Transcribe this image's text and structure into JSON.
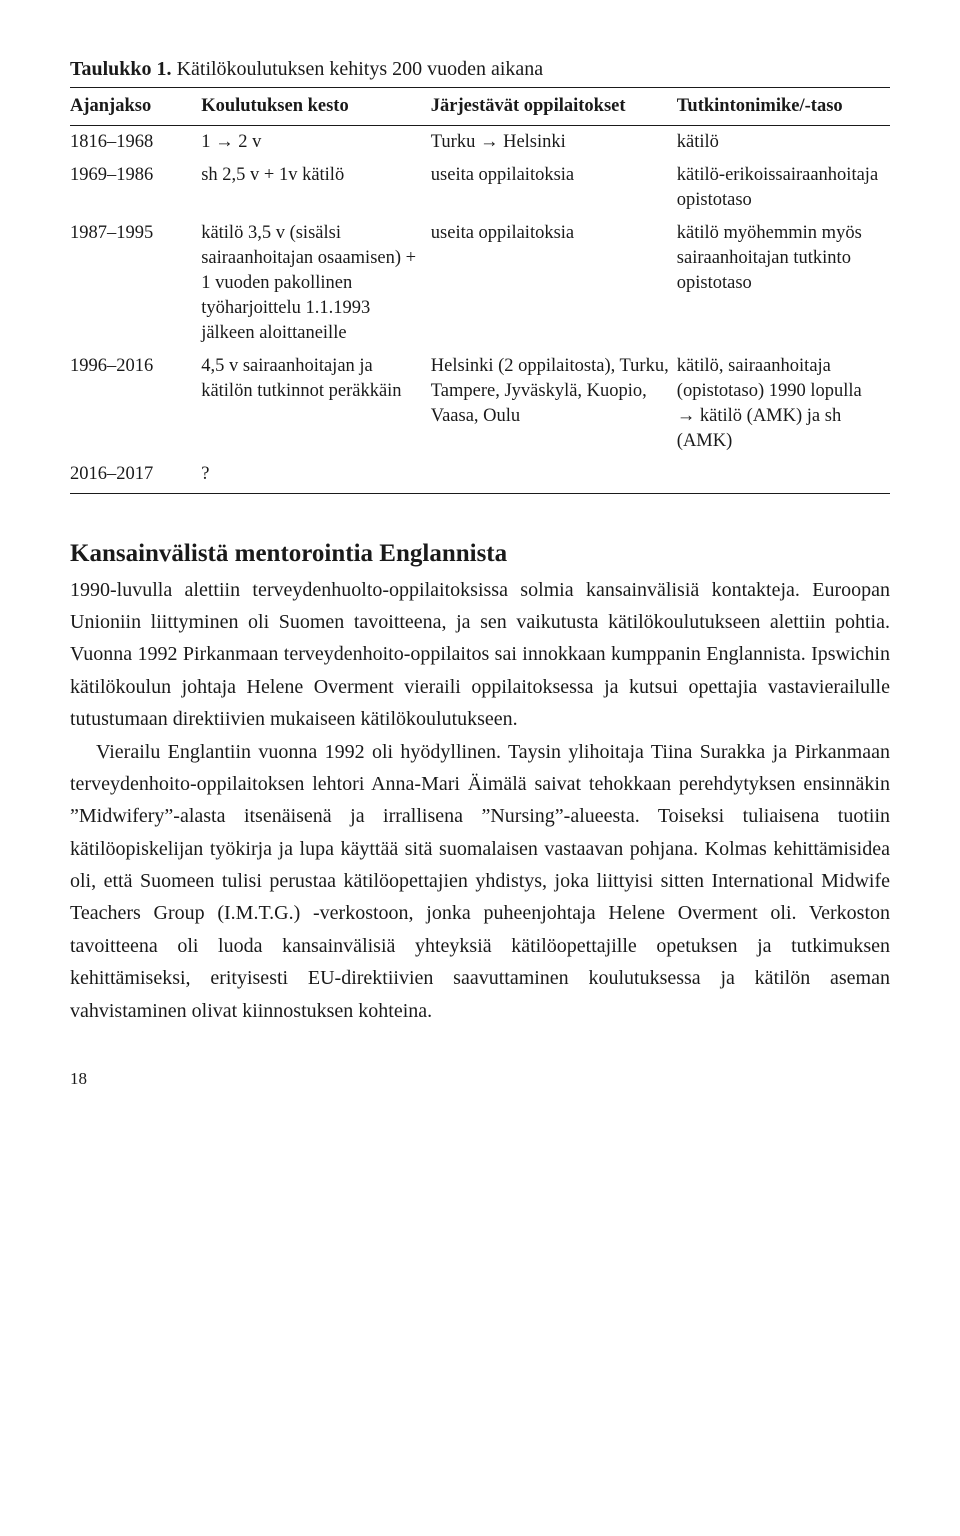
{
  "table": {
    "label": "Taulukko 1.",
    "caption": "Kätilökoulutuksen kehitys 200 vuoden aikana",
    "headers": [
      "Ajanjakso",
      "Koulutuksen kesto",
      "Järjestävät oppilaitokset",
      "Tutkintonimike/-taso"
    ],
    "rows": [
      {
        "period": "1816–1968",
        "kesto": "1 → 2 v",
        "opp": "Turku → Helsinki",
        "taso": "kätilö"
      },
      {
        "period": "1969–1986",
        "kesto": "sh 2,5 v + 1v kätilö",
        "opp": "useita oppilaitoksia",
        "taso": "kätilö-erikoissairaanhoitaja opistotaso"
      },
      {
        "period": "1987–1995",
        "kesto": "kätilö 3,5 v (sisälsi sairaanhoitajan osaamisen) + 1 vuoden pakollinen työharjoittelu 1.1.1993 jälkeen aloittaneille",
        "opp": "useita oppilaitoksia",
        "taso": "kätilö myöhemmin myös sairaanhoitajan tutkinto opistotaso"
      },
      {
        "period": "1996–2016",
        "kesto": "4,5 v sairaanhoitajan ja kätilön tutkinnot peräkkäin",
        "opp": "Helsinki (2 oppilaitosta), Turku, Tampere, Jyväskylä, Kuopio, Vaasa, Oulu",
        "taso": "kätilö, sairaanhoitaja (opistotaso) 1990 lopulla → kätilö (AMK) ja sh (AMK)"
      },
      {
        "period": "2016–2017",
        "kesto": "?",
        "opp": "",
        "taso": ""
      }
    ]
  },
  "section": {
    "heading": "Kansainvälistä mentorointia Englannista",
    "p1": "1990-luvulla alettiin terveydenhuolto-oppilaitoksissa solmia kansainvälisiä kontakteja. Euroopan Unioniin liittyminen oli Suomen tavoitteena, ja sen vaikutusta kätilökoulutukseen alettiin pohtia. Vuonna 1992 Pirkanmaan terveydenhoito-oppilaitos sai innokkaan kumppanin Englannista. Ipswichin kätilökoulun johtaja Helene Overment vieraili oppilaitoksessa ja kutsui opettajia vastavierailulle tutustumaan direktiivien mukaiseen kätilökoulutukseen.",
    "p2": "Vierailu Englantiin vuonna 1992 oli hyödyllinen. Taysin ylihoitaja Tiina Surakka ja Pirkanmaan terveydenhoito-oppilaitoksen lehtori Anna-Mari Äimälä saivat tehokkaan perehdytyksen ensinnäkin ”Midwifery”-alasta itsenäisenä ja irrallisena ”Nursing”-alueesta. Toiseksi tuliaisena tuotiin kätilöopiskelijan työkirja ja lupa käyttää sitä suomalaisen vastaavan pohjana. Kolmas kehittämisidea oli, että Suomeen tulisi perustaa kätilöopettajien yhdistys, joka liittyisi sitten International Midwife Teachers Group (I.M.T.G.) -verkostoon, jonka puheenjohtaja Helene Overment oli. Verkoston tavoitteena oli luoda kansainvälisiä yhteyksiä kätilöopettajille opetuksen ja tutkimuksen kehittämiseksi, erityisesti EU-direktiivien saavuttaminen koulutuksessa ja kätilön aseman vahvistaminen olivat kiinnostuksen kohteina."
  },
  "page_number": "18"
}
